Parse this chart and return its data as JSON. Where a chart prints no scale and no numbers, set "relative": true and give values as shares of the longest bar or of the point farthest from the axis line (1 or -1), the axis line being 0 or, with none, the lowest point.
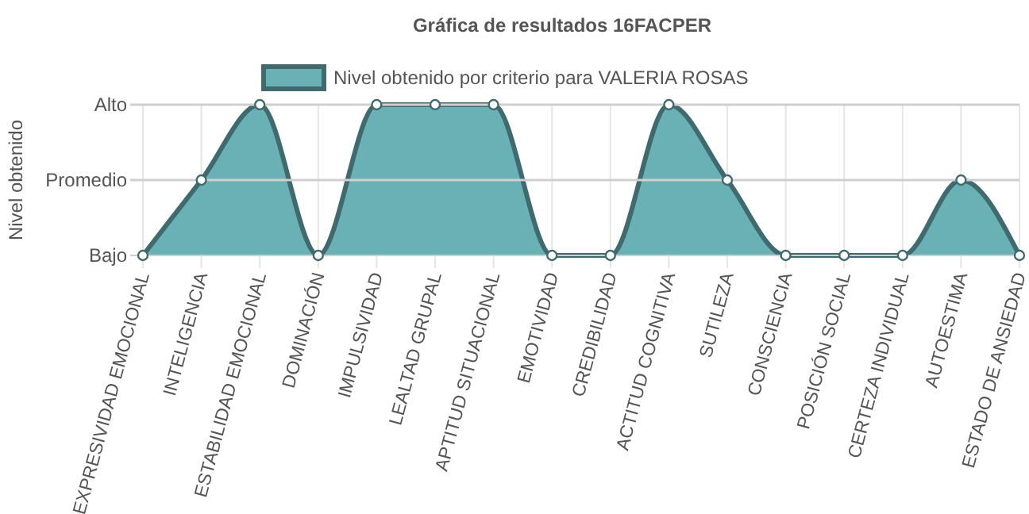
{
  "chart_data": {
    "type": "area",
    "title": "Gráfica de resultados 16FACPER",
    "ylabel": "Nivel obtenido",
    "categories": [
      "EXPRESIVIDAD EMOCIONAL",
      "INTELIGENCIA",
      "ESTABILIDAD EMOCIONAL",
      "DOMINACIÓN",
      "IMPULSIVIDAD",
      "LEALTAD GRUPAL",
      "APTITUD SITUACIONAL",
      "EMOTIVIDAD",
      "CREDIBILIDAD",
      "ACTITUD COGNITIVA",
      "SUTILEZA",
      "CONSCIENCIA",
      "POSICIÓN SOCIAL",
      "CERTEZA INDIVIDUAL",
      "AUTOESTIMA",
      "ESTADO DE ANSIEDAD"
    ],
    "series": [
      {
        "name": "Nivel obtenido por criterio para VALERIA ROSAS",
        "color": "#6ab1b5",
        "values": [
          0,
          0.5,
          1,
          0,
          1,
          1,
          1,
          0,
          0,
          1,
          0.5,
          0,
          0,
          0,
          0.5,
          0
        ]
      }
    ],
    "relative": true,
    "annotations": [
      "Bajo"
    ],
    "ref_lines": [
      {
        "axis": "y",
        "value": 0.5,
        "label": "Promedio",
        "color": "#cfcfcf"
      },
      {
        "axis": "y",
        "value": 1,
        "label": "Alto",
        "color": "#cfcfcf"
      }
    ],
    "grid": "x",
    "legend": "top",
    "marker": "circle"
  }
}
